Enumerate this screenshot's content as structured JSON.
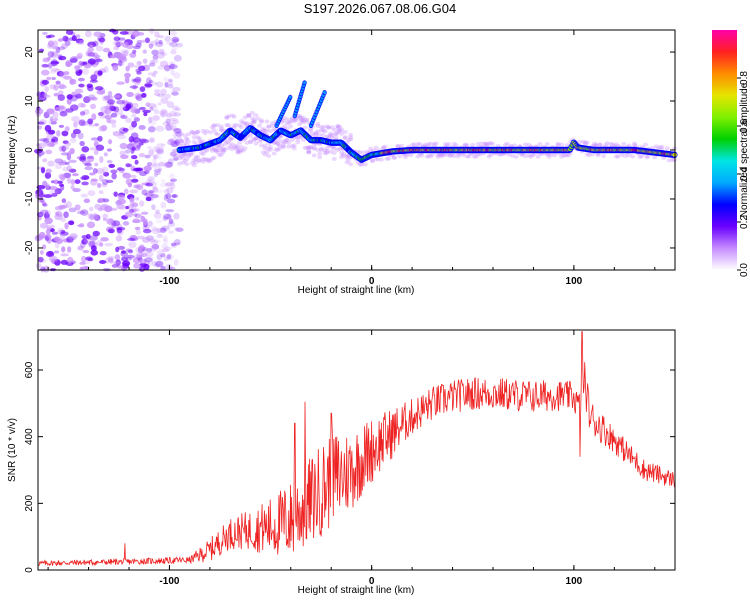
{
  "title": "S197.2026.067.08.06.G04",
  "chart_data": [
    {
      "type": "heatmap",
      "name": "spectrogram",
      "xlabel": "Height of straight line (km)",
      "ylabel": "Frequency (Hz)",
      "xlim": [
        -165,
        150
      ],
      "ylim": [
        -24.5,
        24.5
      ],
      "xticks": [
        -100,
        0,
        100
      ],
      "yticks": [
        -20,
        -10,
        0,
        10,
        20
      ],
      "noise_region_x": [
        -165,
        -95
      ],
      "ridge": {
        "x": [
          -95,
          -85,
          -75,
          -70,
          -65,
          -60,
          -55,
          -50,
          -45,
          -40,
          -35,
          -30,
          -25,
          -20,
          -15,
          -10,
          -5,
          0,
          10,
          20,
          40,
          60,
          80,
          98,
          100,
          102,
          110,
          130,
          150
        ],
        "y": [
          0,
          0.5,
          2,
          4,
          2.5,
          4.5,
          3,
          2,
          4,
          3,
          4,
          2,
          2,
          1.5,
          1.5,
          -0.5,
          -2,
          -1,
          -0.3,
          0,
          0,
          0,
          0,
          0,
          1.5,
          0.5,
          0,
          0,
          -1
        ]
      },
      "streaks": [
        {
          "x": [
            -38,
            -33
          ],
          "y": [
            7,
            14
          ]
        },
        {
          "x": [
            -30,
            -23
          ],
          "y": [
            5,
            12
          ]
        },
        {
          "x": [
            -47,
            -40
          ],
          "y": [
            5,
            11
          ]
        }
      ],
      "colorbar": {
        "label": "Normalized spectral amplitude",
        "ticks": [
          0.0,
          0.2,
          0.4,
          0.6,
          0.8
        ],
        "tick_labels": [
          "0.0",
          "0.2",
          "0.4",
          "0.6",
          "0.8"
        ],
        "range": [
          0,
          1
        ],
        "colors": [
          "#ffffff",
          "#c68cff",
          "#6a00ff",
          "#0000ff",
          "#00aaff",
          "#00e5e5",
          "#00d000",
          "#7ff000",
          "#e5e500",
          "#ff8c00",
          "#ff2020",
          "#ff00aa"
        ]
      }
    },
    {
      "type": "line",
      "name": "snr",
      "xlabel": "Height of straight line (km)",
      "ylabel": "SNR (10 * v/v)",
      "xlim": [
        -165,
        150
      ],
      "ylim": [
        0,
        720
      ],
      "xticks": [
        -100,
        0,
        100
      ],
      "yticks": [
        0,
        200,
        400,
        600
      ],
      "line_color": "#ee2222",
      "envelope": {
        "x": [
          -165,
          -120,
          -90,
          -80,
          -70,
          -60,
          -50,
          -40,
          -30,
          -20,
          -10,
          0,
          10,
          20,
          30,
          40,
          50,
          60,
          70,
          80,
          90,
          100,
          103,
          105,
          108,
          115,
          125,
          135,
          150
        ],
        "y": [
          20,
          25,
          30,
          60,
          110,
          120,
          130,
          150,
          210,
          270,
          300,
          360,
          410,
          460,
          500,
          520,
          530,
          530,
          525,
          520,
          525,
          520,
          480,
          580,
          460,
          420,
          360,
          300,
          270
        ]
      },
      "noise_amplitude": {
        "x": [
          -165,
          -90,
          -80,
          -60,
          -40,
          -20,
          0,
          20,
          40,
          60,
          80,
          100,
          105,
          120,
          150
        ],
        "y": [
          8,
          10,
          35,
          60,
          120,
          150,
          100,
          55,
          50,
          50,
          50,
          45,
          60,
          40,
          25
        ]
      },
      "spikes": [
        {
          "x": 104,
          "y": 715
        },
        {
          "x": 103,
          "y": 340
        },
        {
          "x": -33,
          "y": 505
        },
        {
          "x": -20,
          "y": 470
        },
        {
          "x": -38,
          "y": 440
        },
        {
          "x": -122,
          "y": 80
        }
      ]
    }
  ]
}
